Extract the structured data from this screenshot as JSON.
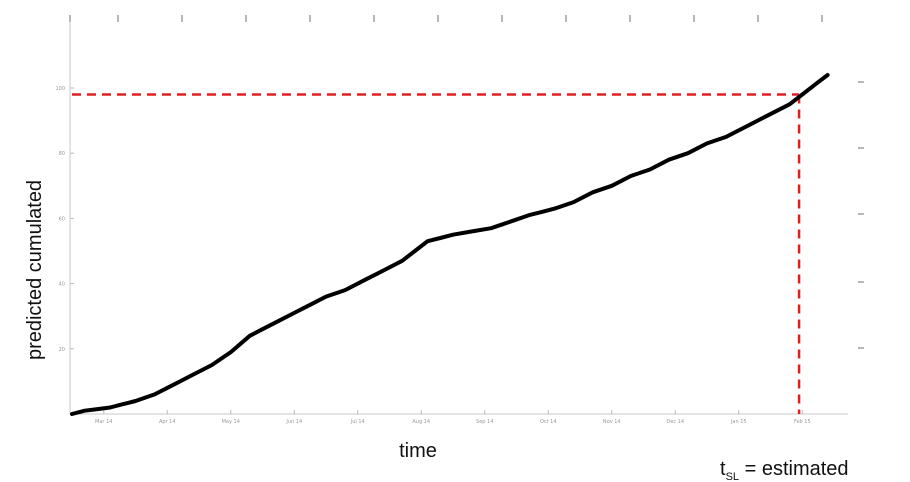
{
  "chart_data": {
    "type": "line",
    "xlabel": "time",
    "ylabel": "predicted cumulated",
    "x_tick_labels": [
      "Mar 14",
      "Apr 14",
      "May 14",
      "Jun 14",
      "Jul 14",
      "Aug 14",
      "Sep 14",
      "Oct 14",
      "Nov 14",
      "Dec 14",
      "Jan 15",
      "Feb 15"
    ],
    "y_tick_labels": [
      "20",
      "40",
      "60",
      "80",
      "100"
    ],
    "ylim": [
      0,
      100
    ],
    "xlim": [
      0,
      12
    ],
    "grid": false,
    "series": [
      {
        "x": [
          0,
          0.2,
          0.4,
          0.6,
          0.8,
          1.0,
          1.3,
          1.6,
          1.9,
          2.2,
          2.5,
          2.8,
          3.0,
          3.2,
          3.5,
          3.8,
          4.0,
          4.3,
          4.6,
          4.9,
          5.2,
          5.4,
          5.6,
          5.8,
          6.0,
          6.3,
          6.6,
          6.9,
          7.2,
          7.4,
          7.6,
          7.9,
          8.2,
          8.5,
          8.8,
          9.1,
          9.4,
          9.7,
          10.0,
          10.3,
          10.6,
          10.9,
          11.1,
          11.3,
          11.5,
          11.7,
          11.9
        ],
        "y": [
          0,
          1,
          1.5,
          2,
          3,
          4,
          6,
          9,
          12,
          15,
          19,
          24,
          26,
          28,
          31,
          34,
          36,
          38,
          41,
          44,
          47,
          50,
          53,
          54,
          55,
          56,
          57,
          59,
          61,
          62,
          63,
          65,
          68,
          70,
          73,
          75,
          78,
          80,
          83,
          85,
          88,
          91,
          93,
          95,
          98,
          101,
          104
        ]
      }
    ],
    "annotation": {
      "label_main": "t",
      "label_sub": "SL",
      "label_rest": " = estimated",
      "threshold_y": 98,
      "crossing_x": 11.45,
      "color": "#e02020"
    },
    "line_color": "#000000"
  }
}
